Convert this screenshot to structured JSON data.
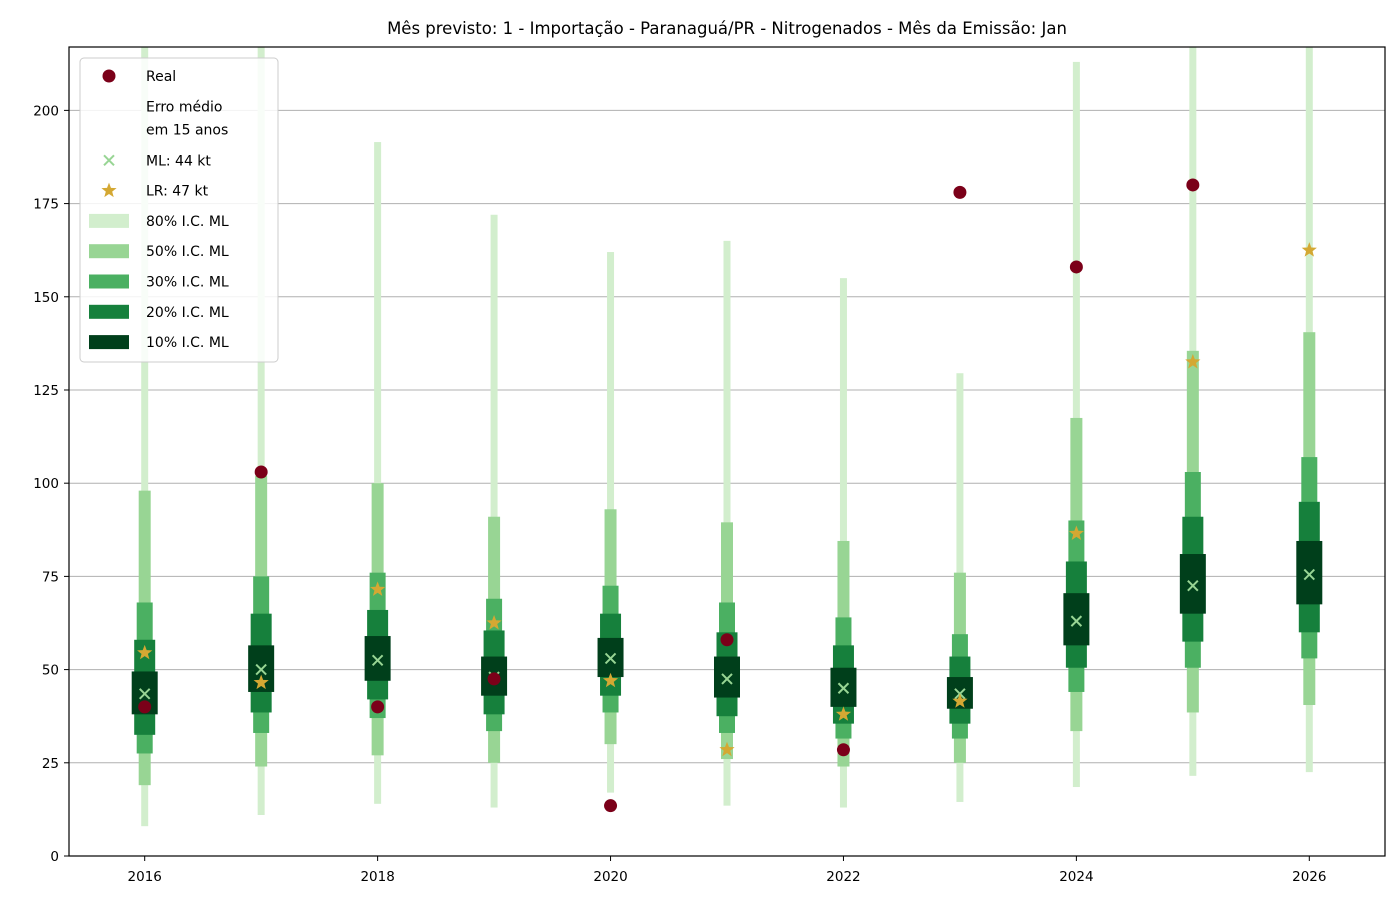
{
  "chart_data": {
    "type": "scatter",
    "title": "Mês previsto: 1 - Importação - Paranaguá/PR - Nitrogenados - Mês da Emissão: Jan",
    "xlabel": "",
    "ylabel": "",
    "xlim": [
      2015.35,
      2026.65
    ],
    "ylim": [
      0,
      217
    ],
    "x_ticks": [
      2016,
      2018,
      2020,
      2022,
      2024,
      2026
    ],
    "y_ticks": [
      0,
      25,
      50,
      75,
      100,
      125,
      150,
      175,
      200
    ],
    "grid": "horizontal",
    "legend_position": "top-left",
    "colors": {
      "real": "#7b0019",
      "ml": "#98d594",
      "lr": "#d4a833",
      "ci80": "#d2eecd",
      "ci50": "#98d594",
      "ci30": "#4bb062",
      "ci20": "#16803c",
      "ci10": "#003f1b",
      "grid": "#b0b0b0"
    },
    "years": [
      2016,
      2017,
      2018,
      2019,
      2020,
      2021,
      2022,
      2023,
      2024,
      2025,
      2026
    ],
    "real": [
      40,
      103,
      40,
      47.5,
      13.5,
      58,
      28.5,
      178,
      null,
      180,
      null
    ],
    "real_2024": 158,
    "ml": [
      43.5,
      50,
      52.5,
      48,
      53,
      47.5,
      45,
      43.5,
      63,
      72.5,
      75.5
    ],
    "lr": [
      54.5,
      46.5,
      71.5,
      62.5,
      47,
      28.5,
      38,
      41.5,
      86.5,
      132.5,
      162.5
    ],
    "intervals": {
      "ci80": [
        [
          8,
          217
        ],
        [
          11,
          217
        ],
        [
          14,
          191.5
        ],
        [
          13,
          172
        ],
        [
          17,
          162
        ],
        [
          13.5,
          165
        ],
        [
          13,
          155
        ],
        [
          14.5,
          129.5
        ],
        [
          18.5,
          213
        ],
        [
          21.5,
          217
        ],
        [
          22.5,
          217
        ]
      ],
      "ci50": [
        [
          19,
          98
        ],
        [
          24,
          102
        ],
        [
          27,
          100
        ],
        [
          25,
          91
        ],
        [
          30,
          93
        ],
        [
          26,
          89.5
        ],
        [
          24,
          84.5
        ],
        [
          25,
          76
        ],
        [
          33.5,
          117.5
        ],
        [
          38.5,
          135.5
        ],
        [
          40.5,
          140.5
        ]
      ],
      "ci30": [
        [
          27.5,
          68
        ],
        [
          33,
          75
        ],
        [
          37,
          76
        ],
        [
          33.5,
          69
        ],
        [
          38.5,
          72.5
        ],
        [
          33,
          68
        ],
        [
          31.5,
          64
        ],
        [
          31.5,
          59.5
        ],
        [
          44,
          90
        ],
        [
          50.5,
          103
        ],
        [
          53,
          107
        ]
      ],
      "ci20": [
        [
          32.5,
          58
        ],
        [
          38.5,
          65
        ],
        [
          42,
          66
        ],
        [
          38,
          60.5
        ],
        [
          43,
          65
        ],
        [
          37.5,
          60
        ],
        [
          35.5,
          56.5
        ],
        [
          35.5,
          53.5
        ],
        [
          50.5,
          79
        ],
        [
          57.5,
          91
        ],
        [
          60,
          95
        ]
      ],
      "ci10": [
        [
          38,
          49.5
        ],
        [
          44,
          56.5
        ],
        [
          47,
          59
        ],
        [
          43,
          53.5
        ],
        [
          48,
          58.5
        ],
        [
          42.5,
          53.5
        ],
        [
          40,
          50.5
        ],
        [
          39.5,
          48
        ],
        [
          56.5,
          70.5
        ],
        [
          65,
          81
        ],
        [
          67.5,
          84.5
        ]
      ]
    },
    "legend": [
      {
        "key": "real",
        "label": "Real",
        "marker": "circle"
      },
      {
        "key": "erro",
        "label_lines": [
          "Erro médio",
          "em 15 anos"
        ],
        "marker": "none"
      },
      {
        "key": "ml",
        "label": "ML: 44 kt",
        "marker": "x"
      },
      {
        "key": "lr",
        "label": "LR: 47 kt",
        "marker": "star"
      },
      {
        "key": "ci80",
        "label": "80% I.C. ML",
        "marker": "patch"
      },
      {
        "key": "ci50",
        "label": "50% I.C. ML",
        "marker": "patch"
      },
      {
        "key": "ci30",
        "label": "30% I.C. ML",
        "marker": "patch"
      },
      {
        "key": "ci20",
        "label": "20% I.C. ML",
        "marker": "patch"
      },
      {
        "key": "ci10",
        "label": "10% I.C. ML",
        "marker": "patch"
      }
    ]
  }
}
